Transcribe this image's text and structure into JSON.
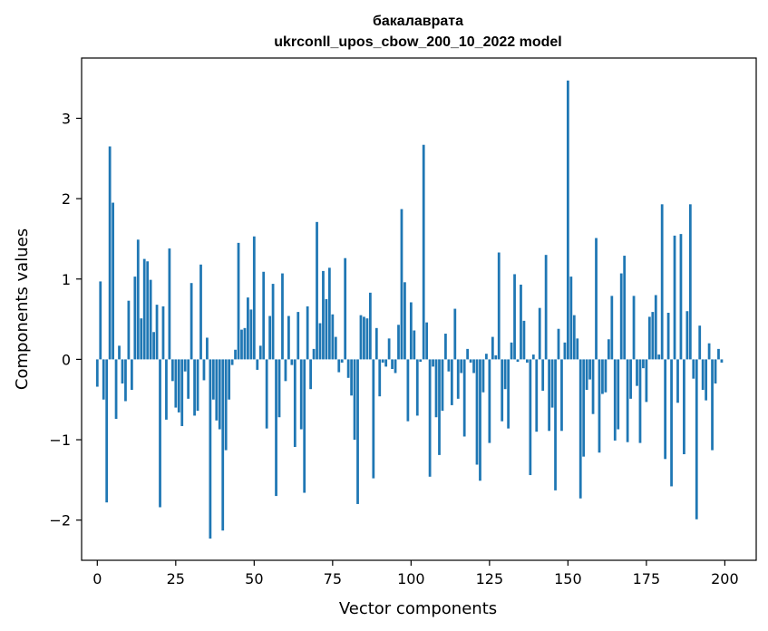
{
  "chart_data": {
    "type": "bar",
    "title_line1": "бакалаврата",
    "title_line2": "ukrconll_upos_cbow_200_10_2022 model",
    "xlabel": "Vector components",
    "ylabel": "Components values",
    "xlim": [
      -5,
      210
    ],
    "ylim": [
      -2.5,
      3.75
    ],
    "xticks": [
      0,
      25,
      50,
      75,
      100,
      125,
      150,
      175,
      200
    ],
    "yticks": [
      -2,
      -1,
      0,
      1,
      2,
      3
    ],
    "ytick_labels": [
      "−2",
      "−1",
      "0",
      "1",
      "2",
      "3"
    ],
    "bar_color": "#1f77b4",
    "grid": false,
    "values": [
      -0.34,
      0.97,
      -0.5,
      -1.78,
      2.65,
      1.95,
      -0.74,
      0.17,
      -0.3,
      -0.52,
      0.73,
      -0.38,
      1.03,
      1.49,
      0.51,
      1.25,
      1.22,
      0.99,
      0.34,
      0.68,
      -1.84,
      0.66,
      -0.75,
      1.38,
      -0.27,
      -0.6,
      -0.66,
      -0.83,
      -0.15,
      -0.49,
      0.95,
      -0.7,
      -0.64,
      1.18,
      -0.26,
      0.27,
      -2.23,
      -0.5,
      -0.76,
      -0.87,
      -2.13,
      -1.13,
      -0.5,
      -0.07,
      0.12,
      1.45,
      0.37,
      0.39,
      0.77,
      0.62,
      1.53,
      -0.13,
      0.17,
      1.09,
      -0.86,
      0.54,
      0.94,
      -1.7,
      -0.72,
      1.07,
      -0.27,
      0.54,
      -0.07,
      -1.09,
      0.59,
      -0.87,
      -1.66,
      0.66,
      -0.37,
      0.13,
      1.71,
      0.45,
      1.1,
      0.75,
      1.14,
      0.56,
      0.28,
      -0.16,
      -0.04,
      1.26,
      -0.23,
      -0.45,
      -1.0,
      -1.8,
      0.55,
      0.53,
      0.51,
      0.83,
      -1.48,
      0.39,
      -0.46,
      -0.04,
      -0.09,
      0.26,
      -0.12,
      -0.17,
      0.43,
      1.87,
      0.96,
      -0.77,
      0.71,
      0.36,
      -0.7,
      -0.03,
      2.67,
      0.46,
      -1.46,
      -0.09,
      -0.72,
      -1.19,
      -0.64,
      0.32,
      -0.15,
      -0.57,
      0.63,
      -0.49,
      -0.17,
      -0.96,
      0.13,
      -0.04,
      -0.17,
      -1.31,
      -1.51,
      -0.41,
      0.07,
      -1.04,
      0.28,
      0.05,
      1.33,
      -0.77,
      -0.37,
      -0.86,
      0.21,
      1.06,
      -0.03,
      0.93,
      0.48,
      -0.04,
      -1.44,
      0.06,
      -0.9,
      0.64,
      -0.39,
      1.3,
      -0.89,
      -0.6,
      -1.63,
      0.38,
      -0.89,
      0.21,
      3.47,
      1.03,
      0.55,
      0.26,
      -1.73,
      -1.21,
      -0.38,
      -0.25,
      -0.68,
      1.51,
      -1.16,
      -0.43,
      -0.41,
      0.25,
      0.79,
      -1.01,
      -0.87,
      1.07,
      1.29,
      -1.03,
      -0.49,
      0.79,
      -0.33,
      -1.04,
      -0.11,
      -0.53,
      0.53,
      0.59,
      0.8,
      0.06,
      1.93,
      -1.24,
      0.58,
      -1.58,
      1.54,
      -0.54,
      1.56,
      -1.18,
      0.6,
      1.93,
      -0.24,
      -1.99,
      0.42,
      -0.38,
      -0.51,
      0.2,
      -1.13,
      -0.3,
      0.13,
      -0.04
    ]
  }
}
